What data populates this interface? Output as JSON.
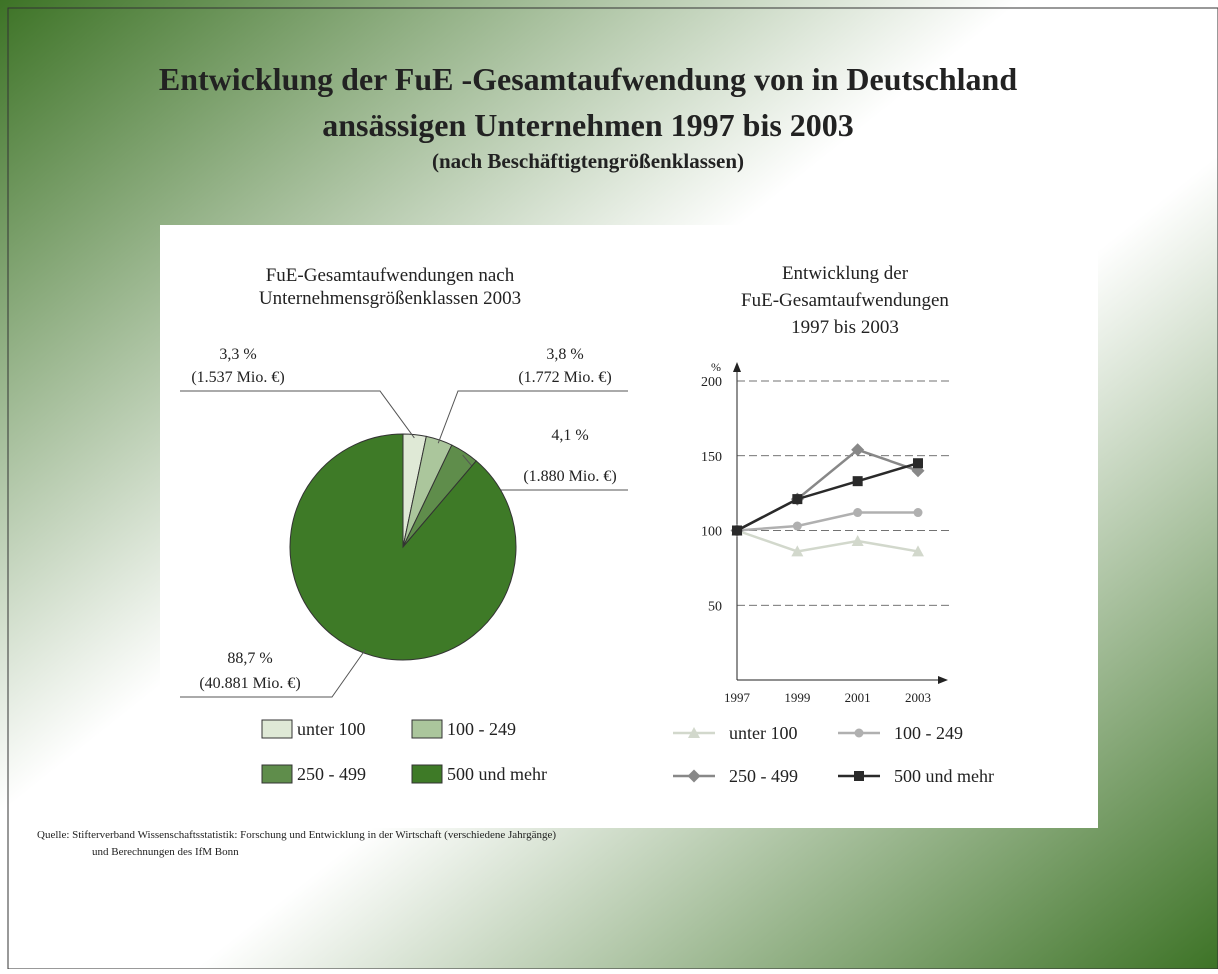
{
  "header": {
    "title_lines": [
      "Entwicklung der FuE -Gesamtaufwendung von in Deutschland",
      "ansässigen Unternehmen 1997 bis 2003"
    ],
    "subtitle": "(nach Beschäftigtengrößenklassen)"
  },
  "chart_data": [
    {
      "type": "pie",
      "title": [
        "FuE-Gesamtaufwendungen nach",
        "Unternehmensgrößenklassen 2003"
      ],
      "categories": [
        "unter 100",
        "100 - 249",
        "250 - 499",
        "500 und mehr"
      ],
      "values": [
        3.3,
        3.8,
        4.1,
        88.7
      ],
      "value_labels": [
        "3,3 %",
        "3,8 %",
        "4,1 %",
        "88,7 %"
      ],
      "amounts": [
        1537,
        1772,
        1880,
        40881
      ],
      "amount_labels": [
        "(1.537 Mio. €)",
        "(1.772 Mio. €)",
        "(1.880 Mio. €)",
        "(40.881 Mio. €)"
      ],
      "colors": [
        "#dfe9d6",
        "#abc69c",
        "#5f8d4b",
        "#3e7a27"
      ]
    },
    {
      "type": "line",
      "title": [
        "Entwicklung der",
        "FuE-Gesamtaufwendungen",
        "1997 bis 2003"
      ],
      "y_label": "%",
      "categories": [
        "1997",
        "1999",
        "2001",
        "2003"
      ],
      "ylim": [
        0,
        200
      ],
      "yticks": [
        50,
        100,
        150,
        200
      ],
      "grid": true,
      "series": [
        {
          "name": "unter 100",
          "color": "#d2d8cc",
          "marker": "triangle",
          "values": [
            100,
            86,
            93,
            86
          ]
        },
        {
          "name": "100 - 249",
          "color": "#b0b0b0",
          "marker": "circle",
          "values": [
            100,
            103,
            112,
            112
          ]
        },
        {
          "name": "250 - 499",
          "color": "#888888",
          "marker": "diamond",
          "values": [
            100,
            121,
            154,
            140
          ]
        },
        {
          "name": "500 und mehr",
          "color": "#2a2a2a",
          "marker": "square",
          "values": [
            100,
            121,
            133,
            145
          ]
        }
      ]
    }
  ],
  "footer": {
    "source_lines": [
      "Quelle:  Stifterverband Wissenschaftsstatistik: Forschung und Entwicklung in der Wirtschaft (verschiedene Jahrgänge)",
      "und Berechnungen des IfM Bonn"
    ]
  }
}
